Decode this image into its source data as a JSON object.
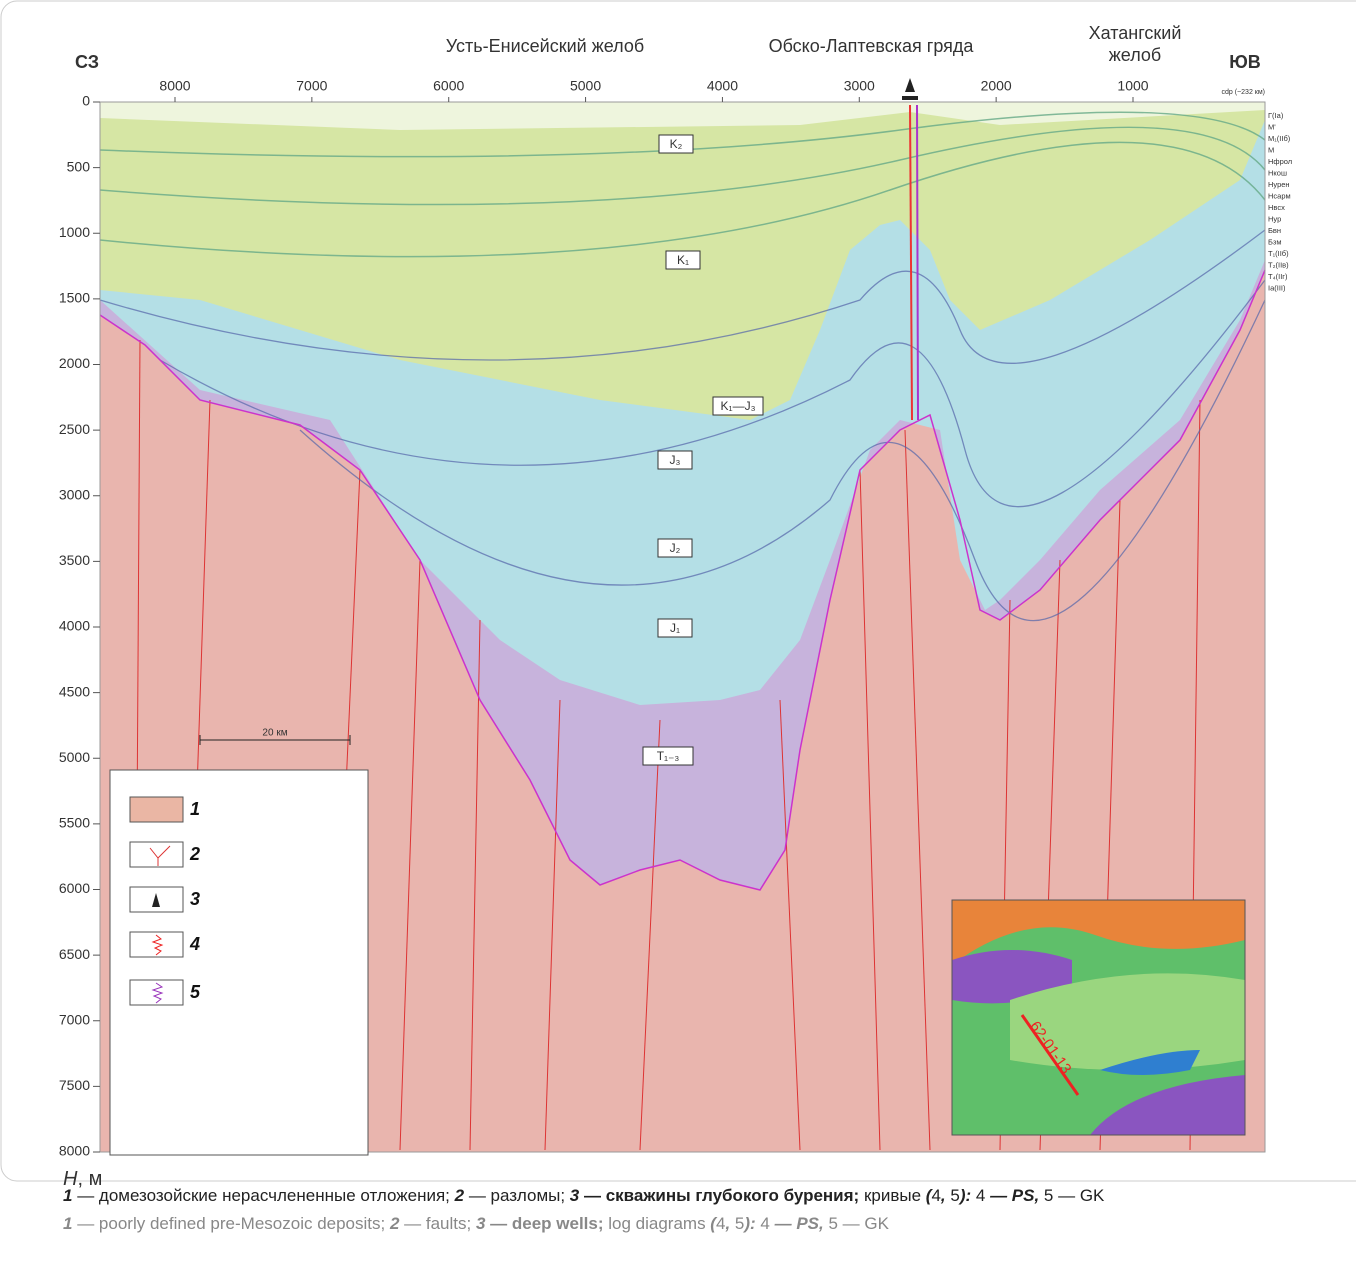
{
  "header": {
    "left": "СЗ",
    "right": "ЮВ",
    "regions": [
      "Усть-Енисейский желоб",
      "Обско-Лаптевская гряда",
      "Хатангский желоб"
    ],
    "cdp_note": "cdp (~232 км)"
  },
  "x_axis": {
    "ticks": [
      8000,
      7000,
      6000,
      5000,
      4000,
      3000,
      2000,
      1000
    ]
  },
  "y_axis": {
    "ticks": [
      0,
      500,
      1000,
      1500,
      2000,
      2500,
      3000,
      3500,
      4000,
      4500,
      5000,
      5500,
      6000,
      6500,
      7000,
      7500,
      8000
    ],
    "label_var": "H",
    "label_unit": ", м"
  },
  "layers": [
    "K₂",
    "K₁",
    "K₁—J₃",
    "J₃",
    "J₂",
    "J₁",
    "T₁₋₃"
  ],
  "horizons": [
    "Г(Ia)",
    "М'",
    "М₁(IIб)",
    "М",
    "Нфрол",
    "Нкош",
    "Нурен",
    "Нсарм",
    "Нвсх",
    "Нур",
    "Бвн",
    "Бзм",
    "Т₁(IIб)",
    "Т₂(IIв)",
    "Т₄(IIг)",
    "Ia(III)"
  ],
  "scale_bar": "20 км",
  "legend": [
    "1",
    "2",
    "3",
    "4",
    "5"
  ],
  "inset_label": "62-01-13",
  "caption": {
    "ru": [
      "1",
      " — домезозойские нерасчлененные отложения; ",
      "2",
      " — разломы; ",
      "3",
      " — скважины глубокого бурения; ",
      "кривые",
      " (",
      "4",
      ", ",
      "5",
      "): ",
      "4",
      " — PS, ",
      "5",
      " — GK"
    ],
    "en": [
      "1",
      " — poorly defined pre-Mesozoic deposits; ",
      "2",
      " — faults; ",
      "3",
      " — deep wells; ",
      "log diagrams",
      " (",
      "4",
      ", ",
      "5",
      "): ",
      "4",
      " — PS, ",
      "5",
      " — GK"
    ]
  }
}
